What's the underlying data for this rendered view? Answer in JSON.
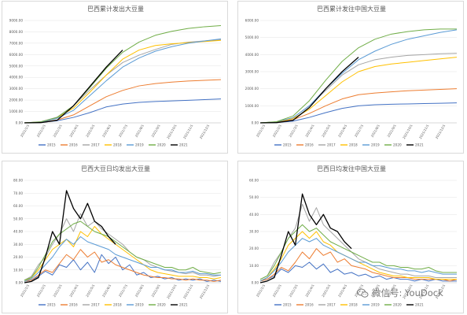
{
  "chart_data": [
    {
      "type": "line",
      "title": "巴西累计发出大豆量",
      "ylim": [
        0,
        9000
      ],
      "y_ticks": [
        "0.00",
        "1000.00",
        "2000.00",
        "3000.00",
        "4000.00",
        "5000.00",
        "6000.00",
        "7000.00",
        "8000.00",
        "9000.00"
      ],
      "x_ticks": [
        "2021/1/1",
        "2021/2/1",
        "2021/3/1",
        "2021/4/1",
        "2021/5/1",
        "2021/6/1",
        "2021/7/1",
        "2021/8/1",
        "2021/9/1",
        "2021/10/1",
        "2021/11/1",
        "2021/12/1"
      ],
      "legend": "bottom",
      "series": [
        {
          "name": "2015",
          "color": "#4472c4",
          "values": [
            0,
            40,
            180,
            480,
            900,
            1400,
            1650,
            1800,
            1880,
            1930,
            1980,
            2040,
            2100
          ]
        },
        {
          "name": "2016",
          "color": "#ed7d31",
          "values": [
            0,
            60,
            250,
            700,
            1500,
            2300,
            2850,
            3250,
            3450,
            3580,
            3680,
            3740,
            3800
          ]
        },
        {
          "name": "2017",
          "color": "#a5a5a5",
          "values": [
            0,
            100,
            500,
            1500,
            2900,
            4200,
            5300,
            5950,
            6450,
            6900,
            7100,
            7200,
            7300
          ]
        },
        {
          "name": "2018",
          "color": "#ffc000",
          "values": [
            0,
            80,
            450,
            1300,
            2700,
            4200,
            5600,
            6400,
            6800,
            6950,
            7050,
            7150,
            7250
          ]
        },
        {
          "name": "2019",
          "color": "#5b9bd5",
          "values": [
            0,
            70,
            400,
            1100,
            2400,
            3700,
            4900,
            5700,
            6300,
            6700,
            7000,
            7200,
            7380
          ]
        },
        {
          "name": "2020",
          "color": "#70ad47",
          "values": [
            0,
            90,
            480,
            1500,
            3100,
            4800,
            6200,
            7100,
            7700,
            8050,
            8300,
            8450,
            8550
          ]
        },
        {
          "name": "2021",
          "color": "#000000",
          "values": [
            0,
            20,
            230,
            1500,
            3200,
            4900,
            6400,
            null,
            null,
            null,
            null,
            null,
            null
          ]
        }
      ]
    },
    {
      "type": "line",
      "title": "巴西累计发往中国大豆量",
      "ylim": [
        0,
        6000
      ],
      "y_ticks": [
        "0.00",
        "1000.00",
        "2000.00",
        "3000.00",
        "4000.00",
        "5000.00",
        "6000.00"
      ],
      "x_ticks": [
        "2021/1/1",
        "2021/2/1",
        "2021/3/1",
        "2021/4/1",
        "2021/5/1",
        "2021/6/1",
        "2021/7/1",
        "2021/8/1",
        "2021/9/1",
        "2021/10/1",
        "2021/11/1",
        "2021/12/1"
      ],
      "legend": "bottom",
      "series": [
        {
          "name": "2015",
          "color": "#4472c4",
          "values": [
            0,
            20,
            100,
            320,
            600,
            850,
            1000,
            1060,
            1090,
            1110,
            1130,
            1150,
            1170
          ]
        },
        {
          "name": "2016",
          "color": "#ed7d31",
          "values": [
            0,
            40,
            180,
            550,
            1000,
            1400,
            1650,
            1750,
            1820,
            1880,
            1920,
            1960,
            2000
          ]
        },
        {
          "name": "2017",
          "color": "#a5a5a5",
          "values": [
            0,
            60,
            300,
            1000,
            1900,
            2800,
            3400,
            3700,
            3850,
            3950,
            4000,
            4050,
            4080
          ]
        },
        {
          "name": "2018",
          "color": "#ffc000",
          "values": [
            0,
            50,
            250,
            800,
            1600,
            2400,
            3000,
            3300,
            3450,
            3550,
            3650,
            3750,
            3850
          ]
        },
        {
          "name": "2019",
          "color": "#5b9bd5",
          "values": [
            0,
            60,
            300,
            1000,
            2000,
            2900,
            3700,
            4200,
            4600,
            4900,
            5100,
            5300,
            5450
          ]
        },
        {
          "name": "2020",
          "color": "#70ad47",
          "values": [
            0,
            70,
            400,
            1300,
            2500,
            3600,
            4400,
            4900,
            5200,
            5350,
            5450,
            5500,
            5500
          ]
        },
        {
          "name": "2021",
          "color": "#000000",
          "values": [
            0,
            15,
            150,
            900,
            2000,
            3000,
            3850,
            null,
            null,
            null,
            null,
            null,
            null
          ]
        }
      ]
    },
    {
      "type": "line",
      "title": "巴西大豆日均发出大豆量",
      "ylim": [
        0,
        80
      ],
      "y_ticks": [
        "0.00",
        "10.00",
        "20.00",
        "30.00",
        "40.00",
        "50.00",
        "60.00",
        "70.00",
        "80.00"
      ],
      "x_ticks": [
        "2021/1/1",
        "2021/2/1",
        "2021/3/1",
        "2021/4/1",
        "2021/5/1",
        "2021/6/1",
        "2021/7/1",
        "2021/8/1",
        "2021/9/1",
        "2021/10/1",
        "2021/11/1",
        "2021/12/1"
      ],
      "legend": "bottom",
      "series": [
        {
          "name": "2015",
          "color": "#4472c4",
          "values": [
            1,
            2,
            5,
            9,
            6,
            14,
            12,
            18,
            10,
            16,
            8,
            22,
            15,
            20,
            10,
            14,
            6,
            8,
            4,
            5,
            3,
            4,
            2,
            3,
            2,
            3,
            1,
            2,
            1
          ]
        },
        {
          "name": "2016",
          "color": "#ed7d31",
          "values": [
            1,
            2,
            6,
            10,
            8,
            15,
            22,
            18,
            26,
            20,
            24,
            16,
            18,
            14,
            12,
            10,
            8,
            6,
            5,
            4,
            4,
            3,
            3,
            2,
            3,
            2,
            2,
            1,
            2
          ]
        },
        {
          "name": "2017",
          "color": "#a5a5a5",
          "values": [
            2,
            5,
            14,
            20,
            30,
            38,
            50,
            40,
            54,
            44,
            48,
            42,
            38,
            34,
            30,
            24,
            20,
            18,
            14,
            12,
            10,
            9,
            8,
            7,
            8,
            6,
            6,
            5,
            6
          ]
        },
        {
          "name": "2018",
          "color": "#ffc000",
          "values": [
            1,
            4,
            10,
            18,
            26,
            30,
            34,
            28,
            40,
            36,
            44,
            38,
            34,
            30,
            26,
            22,
            18,
            14,
            10,
            8,
            7,
            6,
            5,
            5,
            5,
            4,
            4,
            3,
            4
          ]
        },
        {
          "name": "2019",
          "color": "#5b9bd5",
          "values": [
            1,
            3,
            8,
            14,
            20,
            28,
            34,
            30,
            36,
            32,
            30,
            28,
            26,
            22,
            20,
            18,
            16,
            14,
            12,
            12,
            10,
            10,
            8,
            8,
            9,
            7,
            7,
            6,
            6
          ]
        },
        {
          "name": "2020",
          "color": "#70ad47",
          "values": [
            2,
            4,
            12,
            22,
            32,
            38,
            42,
            46,
            48,
            44,
            40,
            38,
            36,
            32,
            28,
            24,
            20,
            18,
            16,
            14,
            12,
            12,
            10,
            10,
            12,
            9,
            8,
            7,
            8
          ]
        },
        {
          "name": "2021",
          "color": "#000000",
          "values": [
            0,
            1,
            4,
            20,
            40,
            30,
            72,
            58,
            50,
            62,
            48,
            44,
            36,
            30,
            null,
            null,
            null,
            null,
            null,
            null,
            null,
            null,
            null,
            null,
            null,
            null,
            null,
            null,
            null
          ]
        }
      ]
    },
    {
      "type": "line",
      "title": "巴西日均发往中国大豆量",
      "ylim": [
        0,
        60
      ],
      "y_ticks": [
        "0.00",
        "10.00",
        "20.00",
        "30.00",
        "40.00",
        "50.00",
        "60.00"
      ],
      "x_ticks": [
        "2021/1/1",
        "2021/2/1",
        "2021/3/1",
        "2021/4/1",
        "2021/5/1",
        "2021/6/1",
        "2021/7/1",
        "2021/8/1",
        "2021/9/1",
        "2021/10/1",
        "2021/11/1",
        "2021/12/1"
      ],
      "legend": "bottom",
      "series": [
        {
          "name": "2015",
          "color": "#4472c4",
          "values": [
            1,
            2,
            4,
            8,
            6,
            10,
            9,
            12,
            8,
            11,
            6,
            8,
            5,
            6,
            4,
            5,
            3,
            4,
            2,
            3,
            2,
            2,
            1,
            2,
            1,
            2,
            1,
            1,
            1
          ]
        },
        {
          "name": "2016",
          "color": "#ed7d31",
          "values": [
            1,
            2,
            5,
            9,
            7,
            12,
            18,
            14,
            20,
            16,
            18,
            12,
            14,
            10,
            9,
            8,
            6,
            5,
            4,
            3,
            3,
            3,
            2,
            2,
            2,
            2,
            2,
            1,
            2
          ]
        },
        {
          "name": "2017",
          "color": "#a5a5a5",
          "values": [
            2,
            4,
            12,
            18,
            26,
            32,
            46,
            36,
            44,
            34,
            30,
            26,
            22,
            18,
            14,
            12,
            10,
            8,
            7,
            6,
            5,
            5,
            4,
            4,
            4,
            3,
            3,
            3,
            3
          ]
        },
        {
          "name": "2018",
          "color": "#ffc000",
          "values": [
            1,
            3,
            8,
            14,
            22,
            26,
            30,
            26,
            30,
            24,
            22,
            18,
            16,
            14,
            12,
            10,
            8,
            6,
            5,
            4,
            4,
            3,
            3,
            3,
            3,
            2,
            2,
            2,
            2
          ]
        },
        {
          "name": "2019",
          "color": "#5b9bd5",
          "values": [
            1,
            3,
            7,
            12,
            18,
            22,
            26,
            24,
            26,
            22,
            20,
            18,
            16,
            14,
            12,
            12,
            10,
            10,
            9,
            8,
            8,
            7,
            7,
            6,
            7,
            6,
            5,
            5,
            5
          ]
        },
        {
          "name": "2020",
          "color": "#70ad47",
          "values": [
            2,
            4,
            10,
            18,
            26,
            30,
            34,
            30,
            32,
            28,
            24,
            22,
            20,
            18,
            16,
            14,
            12,
            12,
            10,
            10,
            9,
            9,
            8,
            8,
            9,
            7,
            6,
            6,
            6
          ]
        },
        {
          "name": "2021",
          "color": "#000000",
          "values": [
            0,
            1,
            3,
            16,
            30,
            22,
            52,
            40,
            34,
            40,
            32,
            30,
            24,
            20,
            null,
            null,
            null,
            null,
            null,
            null,
            null,
            null,
            null,
            null,
            null,
            null,
            null,
            null,
            null
          ]
        }
      ]
    }
  ],
  "watermark": {
    "text": "微信号: YouDock",
    "icon": "wechat-icon"
  }
}
